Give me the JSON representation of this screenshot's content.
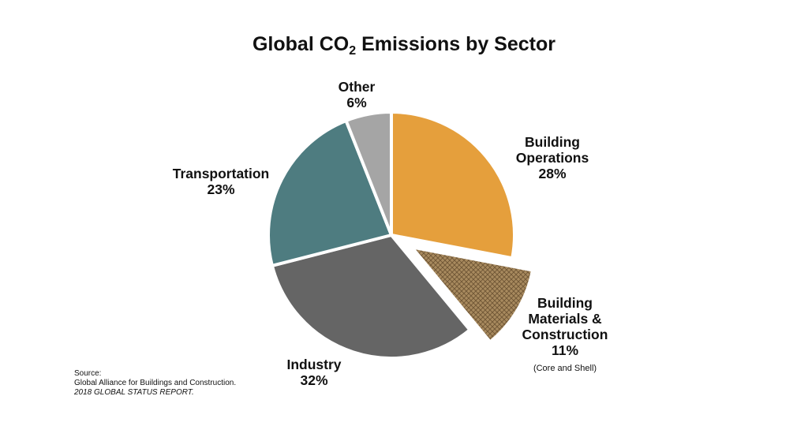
{
  "chart_data": {
    "type": "pie",
    "title_prefix": "Global CO",
    "title_sub": "2",
    "title_suffix": " Emissions by Sector",
    "slices": [
      {
        "label": [
          "Building",
          "Operations",
          "28%"
        ],
        "value": 28,
        "color": "#E59F3C",
        "pattern": "none",
        "exploded": false
      },
      {
        "label": [
          "Building",
          "Materials &",
          "Construction",
          "11%"
        ],
        "note": "(Core and Shell)",
        "value": 11,
        "color": "#A88A5E",
        "pattern": "crosshatch",
        "exploded": true
      },
      {
        "label": [
          "Industry",
          "32%"
        ],
        "value": 32,
        "color": "#656565",
        "pattern": "none",
        "exploded": false
      },
      {
        "label": [
          "Transportation",
          "23%"
        ],
        "value": 23,
        "color": "#4E7C80",
        "pattern": "none",
        "exploded": false
      },
      {
        "label": [
          "Other",
          "6%"
        ],
        "value": 6,
        "color": "#A5A5A5",
        "pattern": "none",
        "exploded": false
      }
    ],
    "start": "top",
    "direction": "clockwise"
  },
  "source": {
    "heading": "Source:",
    "line1": "Global Alliance for Buildings and Construction.",
    "line2": "2018 GLOBAL STATUS REPORT."
  }
}
